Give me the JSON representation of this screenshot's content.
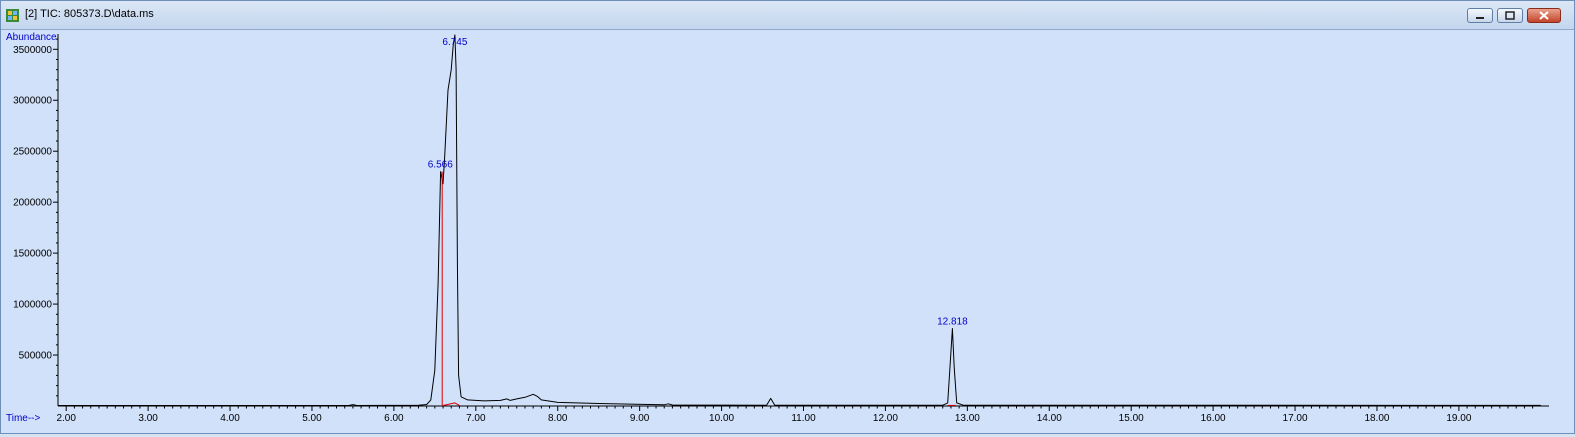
{
  "window": {
    "title": "[2] TIC: 805373.D\\data.ms",
    "icon": "chromatogram-icon",
    "controls": [
      "minimize-icon",
      "restore-icon",
      "close-icon"
    ]
  },
  "chart_data": {
    "type": "line",
    "ylabel": "Abundance",
    "xlabel": "Time-->",
    "xlim": [
      1.9,
      20.1
    ],
    "ylim": [
      0,
      3650000
    ],
    "x_ticks": [
      2.0,
      3.0,
      4.0,
      5.0,
      6.0,
      7.0,
      8.0,
      9.0,
      10.0,
      11.0,
      12.0,
      13.0,
      14.0,
      15.0,
      16.0,
      17.0,
      18.0,
      19.0
    ],
    "x_tick_labels": [
      "2.00",
      "3.00",
      "4.00",
      "5.00",
      "6.00",
      "7.00",
      "8.00",
      "9.00",
      "10.00",
      "11.00",
      "12.00",
      "13.00",
      "14.00",
      "15.00",
      "16.00",
      "17.00",
      "18.00",
      "19.00"
    ],
    "y_ticks": [
      500000,
      1000000,
      1500000,
      2000000,
      2500000,
      3000000,
      3500000
    ],
    "y_tick_labels": [
      "500000",
      "1000000",
      "1500000",
      "2000000",
      "2500000",
      "3000000",
      "3500000"
    ],
    "series": [
      {
        "color": "#000000",
        "points": [
          [
            1.9,
            5000
          ],
          [
            5.45,
            5000
          ],
          [
            5.5,
            14000
          ],
          [
            5.55,
            5000
          ],
          [
            6.3,
            8000
          ],
          [
            6.4,
            15000
          ],
          [
            6.45,
            60000
          ],
          [
            6.5,
            350000
          ],
          [
            6.54,
            1200000
          ],
          [
            6.57,
            2300000
          ],
          [
            6.6,
            2180000
          ],
          [
            6.62,
            2450000
          ],
          [
            6.66,
            3100000
          ],
          [
            6.7,
            3300000
          ],
          [
            6.725,
            3550000
          ],
          [
            6.745,
            3640000
          ],
          [
            6.76,
            3300000
          ],
          [
            6.775,
            1400000
          ],
          [
            6.79,
            300000
          ],
          [
            6.82,
            90000
          ],
          [
            6.9,
            60000
          ],
          [
            7.1,
            50000
          ],
          [
            7.3,
            55000
          ],
          [
            7.38,
            70000
          ],
          [
            7.42,
            55000
          ],
          [
            7.5,
            70000
          ],
          [
            7.6,
            85000
          ],
          [
            7.7,
            115000
          ],
          [
            7.75,
            95000
          ],
          [
            7.8,
            60000
          ],
          [
            8.0,
            35000
          ],
          [
            8.5,
            25000
          ],
          [
            9.3,
            12000
          ],
          [
            9.35,
            22000
          ],
          [
            9.4,
            10000
          ],
          [
            10.55,
            8000
          ],
          [
            10.6,
            75000
          ],
          [
            10.65,
            8000
          ],
          [
            12.7,
            8000
          ],
          [
            12.76,
            30000
          ],
          [
            12.79,
            400000
          ],
          [
            12.818,
            760000
          ],
          [
            12.84,
            380000
          ],
          [
            12.87,
            30000
          ],
          [
            12.95,
            8000
          ],
          [
            20.0,
            6000
          ]
        ]
      },
      {
        "color": "#e00000",
        "points": [
          [
            6.59,
            0
          ],
          [
            6.59,
            2300000
          ]
        ]
      },
      {
        "color": "#e00000",
        "points": [
          [
            6.6,
            5000
          ],
          [
            6.745,
            30000
          ],
          [
            6.8,
            6000
          ]
        ]
      },
      {
        "color": "#e00000",
        "points": [
          [
            12.76,
            6000
          ],
          [
            12.86,
            6000
          ]
        ]
      }
    ],
    "annotations": [
      {
        "x": 6.566,
        "y": 2300000,
        "text": "6.566"
      },
      {
        "x": 6.745,
        "y": 3640000,
        "text": "6.745"
      },
      {
        "x": 12.818,
        "y": 760000,
        "text": "12.818"
      }
    ],
    "grid": false,
    "colors": {
      "background": "#d1e1f9",
      "axis": "#000000",
      "label": "#0000cc"
    }
  }
}
